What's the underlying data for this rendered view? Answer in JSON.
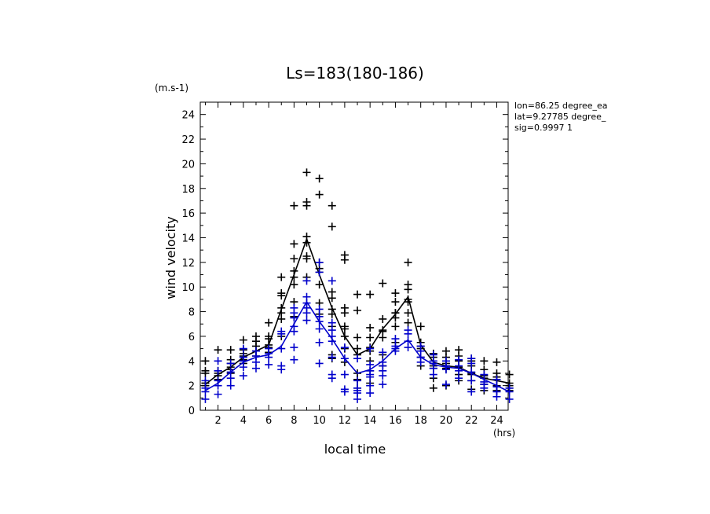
{
  "chart_data": {
    "type": "line",
    "title": "Ls=183(180-186)",
    "xlabel": "local time",
    "ylabel": "wind velocity",
    "x_unit": "(hrs)",
    "y_unit": "(m.s-1)",
    "xlim": [
      0.6,
      24.9
    ],
    "ylim": [
      0,
      25
    ],
    "x_ticks": [
      2,
      4,
      6,
      8,
      10,
      12,
      14,
      16,
      18,
      20,
      22,
      24
    ],
    "y_ticks": [
      0,
      2,
      4,
      6,
      8,
      10,
      12,
      14,
      16,
      18,
      20,
      22,
      24
    ],
    "grid": false,
    "info_lines": [
      "lon=86.25 degree_ea",
      "lat=9.27785 degree_",
      "sig=0.9997 1"
    ],
    "colors": {
      "series_1": "#000000",
      "series_2": "#0000cc"
    },
    "x": [
      1,
      2,
      3,
      4,
      5,
      6,
      7,
      8,
      9,
      10,
      11,
      12,
      13,
      14,
      15,
      16,
      17,
      18,
      19,
      20,
      21,
      22,
      23,
      24,
      25
    ],
    "series": [
      {
        "color": "#000000",
        "mean": [
          2.1,
          2.9,
          3.5,
          4.3,
          4.8,
          5.3,
          8.2,
          11.0,
          13.9,
          11.0,
          8.3,
          6.0,
          4.5,
          5.0,
          6.6,
          7.8,
          9.2,
          5.3,
          3.9,
          3.6,
          3.5,
          3.0,
          2.6,
          2.4,
          2.2
        ],
        "scatter": [
          [
            2.0,
            2.2,
            3.0,
            3.2,
            4.0,
            2.2
          ],
          [
            2.5,
            3.0,
            3.2,
            4.9,
            2.8
          ],
          [
            3.0,
            3.5,
            3.8,
            4.1,
            4.9,
            3.3
          ],
          [
            3.8,
            4.4,
            4.6,
            4.9,
            5.7,
            4.1
          ],
          [
            4.4,
            4.8,
            5.2,
            5.6,
            6.0,
            4.8
          ],
          [
            4.7,
            5.3,
            5.8,
            6.0,
            7.1,
            5.1
          ],
          [
            6.0,
            7.4,
            8.3,
            9.3,
            9.5,
            10.8,
            7.9
          ],
          [
            7.6,
            8.8,
            10.2,
            10.8,
            12.3,
            13.5,
            16.6,
            11.3
          ],
          [
            10.8,
            12.3,
            13.6,
            14.1,
            16.6,
            16.9,
            19.3,
            12.5
          ],
          [
            7.8,
            8.7,
            10.2,
            11.2,
            12.0,
            17.5,
            18.8,
            11.5
          ],
          [
            4.2,
            4.5,
            6.8,
            7.8,
            9.1,
            9.6,
            14.9,
            16.6,
            8.2
          ],
          [
            3.9,
            5.0,
            6.0,
            6.8,
            7.9,
            8.3,
            12.2,
            12.6,
            6.6
          ],
          [
            1.8,
            2.5,
            3.0,
            5.0,
            5.9,
            8.1,
            9.4,
            4.5
          ],
          [
            2.2,
            3.2,
            4.0,
            4.8,
            5.9,
            6.7,
            9.4,
            5.1
          ],
          [
            3.6,
            4.5,
            5.9,
            6.5,
            7.4,
            10.3,
            6.4
          ],
          [
            5.5,
            6.8,
            7.5,
            7.9,
            8.8,
            9.5,
            7.9
          ],
          [
            7.1,
            7.9,
            9.0,
            9.8,
            10.2,
            12.0,
            8.8
          ],
          [
            3.6,
            4.3,
            5.2,
            5.5,
            6.8,
            5.0
          ],
          [
            1.8,
            2.6,
            3.4,
            3.8,
            4.3,
            4.6,
            3.6
          ],
          [
            2.0,
            3.4,
            3.8,
            4.3,
            4.8,
            3.6
          ],
          [
            2.4,
            2.9,
            3.5,
            4.0,
            4.4,
            4.9,
            3.5
          ],
          [
            1.7,
            2.4,
            2.9,
            3.6,
            4.0,
            4.2,
            3.0
          ],
          [
            1.6,
            2.1,
            2.8,
            3.3,
            4.0,
            2.6
          ],
          [
            1.6,
            2.0,
            2.7,
            3.0,
            3.9,
            2.5
          ],
          [
            1.6,
            1.8,
            2.2,
            2.9,
            2.0
          ]
        ]
      },
      {
        "color": "#0000cc",
        "mean": [
          1.6,
          2.2,
          3.1,
          3.9,
          4.3,
          4.5,
          5.2,
          7.0,
          8.8,
          7.2,
          5.8,
          4.2,
          3.0,
          3.3,
          4.0,
          5.0,
          5.7,
          4.3,
          3.7,
          3.5,
          3.4,
          3.0,
          2.5,
          2.0,
          1.5
        ],
        "scatter": [
          [
            0.9,
            1.5,
            1.8,
            2.4
          ],
          [
            1.3,
            2.0,
            2.4,
            3.2,
            4.0
          ],
          [
            2.0,
            2.6,
            3.1,
            3.8
          ],
          [
            2.8,
            3.5,
            4.0,
            4.3,
            5.0
          ],
          [
            3.4,
            3.9,
            4.4,
            4.8
          ],
          [
            3.7,
            4.3,
            4.6,
            5.0
          ],
          [
            3.3,
            3.6,
            5.0,
            6.2,
            6.4
          ],
          [
            4.1,
            5.1,
            6.4,
            6.8,
            7.5,
            7.9,
            8.3
          ],
          [
            7.3,
            7.9,
            8.3,
            8.7,
            9.2,
            10.5
          ],
          [
            3.8,
            5.5,
            6.6,
            7.2,
            7.6,
            8.2,
            11.2,
            12.0
          ],
          [
            2.6,
            2.9,
            4.3,
            5.6,
            6.0,
            6.5,
            7.1,
            10.5
          ],
          [
            1.5,
            1.7,
            2.9,
            4.2,
            5.1
          ],
          [
            0.9,
            1.4,
            1.6,
            1.8,
            2.4,
            4.2
          ],
          [
            1.4,
            2.0,
            2.7,
            2.9,
            3.2,
            3.7,
            5.0
          ],
          [
            2.1,
            2.8,
            3.2,
            3.6,
            3.9,
            4.7
          ],
          [
            4.8,
            5.0,
            5.2,
            5.8
          ],
          [
            5.1,
            5.6,
            6.2,
            6.5
          ],
          [
            3.9,
            4.3,
            4.8,
            5.2
          ],
          [
            2.9,
            3.4,
            3.8,
            4.0,
            4.5
          ],
          [
            2.1,
            3.3,
            3.6,
            4.0
          ],
          [
            2.6,
            3.2,
            3.6,
            4.1
          ],
          [
            1.5,
            2.4,
            3.1,
            3.8,
            4.2
          ],
          [
            1.8,
            2.1,
            2.3,
            2.9
          ],
          [
            1.1,
            1.5,
            1.9,
            2.5
          ],
          [
            0.9,
            1.5,
            1.8
          ]
        ]
      }
    ]
  }
}
